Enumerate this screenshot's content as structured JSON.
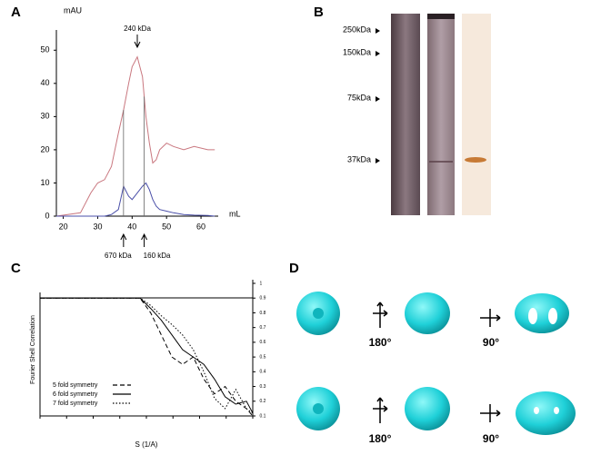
{
  "panels": [
    "A",
    "B",
    "C",
    "D"
  ],
  "chart_data": [
    {
      "type": "line",
      "y_label": "mAU",
      "x_label": "mL",
      "x": [
        18,
        25,
        28,
        30,
        32,
        34,
        36,
        37.5,
        39,
        40,
        41.5,
        43,
        44,
        45,
        46,
        47,
        48,
        50,
        52,
        55,
        58,
        62,
        64
      ],
      "series": [
        {
          "color": "#c9777f",
          "values": [
            0,
            1,
            7,
            10,
            11,
            15,
            25,
            32,
            40,
            45,
            48,
            42,
            30,
            22,
            16,
            17,
            20,
            22,
            21,
            20,
            21,
            20,
            20
          ]
        },
        {
          "color": "#4a4fa8",
          "values": [
            0,
            0,
            0,
            0,
            0,
            0.5,
            2,
            9,
            6,
            5,
            7,
            9,
            10,
            8,
            5,
            3,
            2,
            1.5,
            1,
            0.5,
            0.3,
            0.2,
            0
          ]
        }
      ],
      "xlim": [
        18,
        65
      ],
      "xticks": [
        20,
        30,
        40,
        50,
        60
      ],
      "ylim": [
        0,
        55
      ],
      "yticks": [
        0,
        10,
        20,
        30,
        40,
        50
      ],
      "annotations": [
        {
          "x": 41.5,
          "label": "240 kDa",
          "side": "top"
        },
        {
          "x": 37.5,
          "label": "670 kDa",
          "side": "bottom"
        },
        {
          "x": 43.5,
          "label": "160 kDa",
          "side": "bottom"
        }
      ]
    },
    {
      "type": "line",
      "y_label": "Fourier Shell Correlation",
      "x_label": "S (1/A)",
      "x": [
        0,
        0.047,
        0.052,
        0.057,
        0.062,
        0.067,
        0.072,
        0.077,
        0.082,
        0.087,
        0.092,
        0.097,
        0.1
      ],
      "series": [
        {
          "name": "5 fold symmetry",
          "color": "#000000",
          "dash": "dashed",
          "values": [
            0.9,
            0.9,
            0.8,
            0.65,
            0.5,
            0.45,
            0.5,
            0.35,
            0.25,
            0.3,
            0.2,
            0.15,
            0.1
          ]
        },
        {
          "name": "6 fold symmetry",
          "color": "#000000",
          "dash": "solid",
          "values": [
            0.9,
            0.9,
            0.83,
            0.75,
            0.65,
            0.55,
            0.5,
            0.45,
            0.35,
            0.23,
            0.18,
            0.2,
            0.12
          ]
        },
        {
          "name": "7 fold symmetry",
          "color": "#000000",
          "dash": "dotted",
          "values": [
            0.9,
            0.9,
            0.85,
            0.78,
            0.72,
            0.65,
            0.55,
            0.4,
            0.22,
            0.15,
            0.28,
            0.15,
            0.12
          ]
        }
      ],
      "xlim": [
        0,
        0.1
      ],
      "ylim": [
        0.1,
        1
      ],
      "yticks": [
        0.1,
        0.2,
        0.3,
        0.4,
        0.5,
        0.6,
        0.7,
        0.8,
        0.9,
        1
      ],
      "legend": "lower-left"
    }
  ],
  "blot": {
    "markers": [
      "250kDa",
      "150kDa",
      "75kDa",
      "37kDa"
    ]
  },
  "models": {
    "rows": [
      {
        "rotations": [
          "180°",
          "90°"
        ]
      },
      {
        "rotations": [
          "180°",
          "90°"
        ]
      }
    ]
  }
}
